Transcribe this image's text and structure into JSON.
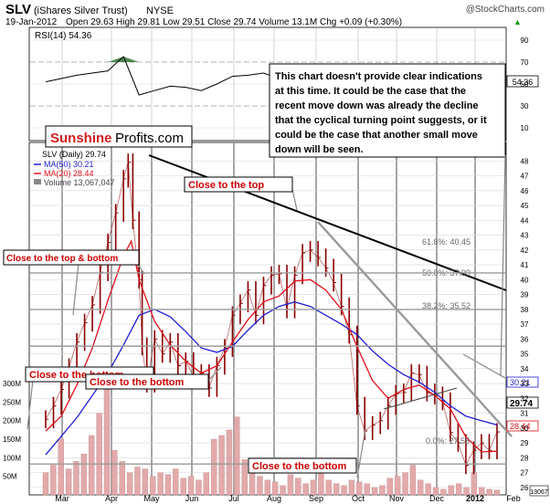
{
  "header": {
    "symbol": "SLV",
    "name": "(iShares Silver Trust)",
    "exchange": "NYSE",
    "copyright": "@StockCharts.com",
    "date": "19-Jan-2012",
    "quote": "Open 29.63  High 29.81  Low 29.51  Close 29.74  Volume 13.1M  Chg +0.09 (+0.30%)",
    "arrow": "▲"
  },
  "rsi": {
    "label": "RSI(14) 54.36",
    "last_tag": "54.36",
    "ticks": [
      "90",
      "70",
      "50",
      "30",
      "10"
    ]
  },
  "price_panel": {
    "legend_title": "SLV (Daily) 29.74",
    "legend_ma50": "MA(50) 30.21",
    "legend_ma20": "MA(20) 28.44",
    "legend_volume": "Volume 13,067,047",
    "tag_ma50": "30.21",
    "tag_close": "29.74",
    "tag_ma20": "28.44",
    "tag_volume": "13067",
    "vol_ticks": [
      "300M",
      "250M",
      "200M",
      "150M",
      "100M",
      "50M"
    ],
    "x_labels": [
      "Mar",
      "Apr",
      "May",
      "Jun",
      "Jul",
      "Aug",
      "Sep",
      "Oct",
      "Nov",
      "Dec",
      "2012",
      "Feb"
    ],
    "fib_labels": [
      "61.8%: 40.45",
      "50.0%: 37.99",
      "38.2%: 35.52",
      "0.0%: 27.58"
    ]
  },
  "brand": {
    "part1": "Sunshine",
    "part2": "Profits.com"
  },
  "annotations": {
    "commentary": [
      "This chart doesn't provide clear indications",
      "at this time. It could be the case that the",
      "recent move down was already the decline",
      "that the cyclical turning point suggests, or it",
      "could be the case that another small move",
      "down will be seen."
    ],
    "close_to_top": "Close to the top",
    "close_to_top_bottom": "Close to the top & bottom",
    "close_to_bottom_1": "Close to the bottom",
    "close_to_bottom_2": "Close to the bottom",
    "close_to_bottom_3": "Close to the bottom"
  },
  "colors": {
    "price_bars": "#8b0000",
    "ma50": "#1e1ed2",
    "ma20": "#e0101a",
    "volume": "#e2aaaa",
    "rsi_fill": "#3d7d3d",
    "annotation_red": "#cc0000",
    "trend_line": "#000000"
  },
  "chart_data": {
    "type": "line",
    "title": "SLV (iShares Silver Trust) NYSE",
    "y_price_ticks": [
      26,
      27,
      28,
      29,
      30,
      31,
      32,
      33,
      34,
      35,
      36,
      37,
      38,
      39,
      40,
      41,
      42,
      43,
      44,
      45,
      46,
      47,
      48
    ],
    "ylim_price": [
      25.5,
      49
    ],
    "ylim_rsi": [
      0,
      100
    ],
    "ylim_volume_millions": [
      0,
      300
    ],
    "x_months": [
      "Mar",
      "Apr",
      "May",
      "Jun",
      "Jul",
      "Aug",
      "Sep",
      "Oct",
      "Nov",
      "Dec",
      "2012",
      "Feb"
    ],
    "fibonacci_levels": [
      {
        "label": "61.8%",
        "value": 40.45
      },
      {
        "label": "50.0%",
        "value": 37.99
      },
      {
        "label": "38.2%",
        "value": 35.52
      },
      {
        "label": "0.0%",
        "value": 27.58
      }
    ],
    "series": [
      {
        "name": "SLV (Daily)",
        "last": 29.74,
        "points": [
          [
            0,
            30.6
          ],
          [
            0.5,
            31.5
          ],
          [
            1,
            32.6
          ],
          [
            1.5,
            34.1
          ],
          [
            2,
            35.8
          ],
          [
            2.5,
            37.1
          ],
          [
            3,
            38.3
          ],
          [
            3.5,
            40.5
          ],
          [
            4,
            42.5
          ],
          [
            4.5,
            44.5
          ],
          [
            5,
            46.8
          ],
          [
            5.3,
            47.9
          ],
          [
            5.6,
            44.0
          ],
          [
            6,
            40.0
          ],
          [
            6.2,
            35.5
          ],
          [
            6.5,
            33.0
          ],
          [
            7,
            36.0
          ],
          [
            7.5,
            35.0
          ],
          [
            8,
            35.8
          ],
          [
            8.5,
            34.2
          ],
          [
            9,
            34.5
          ],
          [
            9.5,
            33.5
          ],
          [
            10,
            33.7
          ],
          [
            10.5,
            32.7
          ],
          [
            11,
            34.2
          ],
          [
            11.5,
            35.4
          ],
          [
            12,
            37.6
          ],
          [
            12.5,
            38.4
          ],
          [
            13,
            39.3
          ],
          [
            13.5,
            37.6
          ],
          [
            14,
            39.6
          ],
          [
            14.5,
            40.3
          ],
          [
            15,
            40.4
          ],
          [
            15.5,
            38.0
          ],
          [
            16,
            40.3
          ],
          [
            16.5,
            41.8
          ],
          [
            17,
            42.0
          ],
          [
            17.5,
            41.5
          ],
          [
            18,
            40.8
          ],
          [
            18.5,
            39.8
          ],
          [
            19,
            38.2
          ],
          [
            19.5,
            36.3
          ],
          [
            20,
            31.5
          ],
          [
            20.5,
            29.8
          ],
          [
            21,
            30.2
          ],
          [
            21.5,
            30.5
          ],
          [
            22,
            31.5
          ],
          [
            22.5,
            32.3
          ],
          [
            23,
            32.4
          ],
          [
            23.5,
            33.7
          ],
          [
            24,
            33.6
          ],
          [
            24.5,
            32.4
          ],
          [
            25,
            32.2
          ],
          [
            25.5,
            31.8
          ],
          [
            26,
            29.7
          ],
          [
            26.5,
            29.0
          ],
          [
            27,
            27.5
          ],
          [
            27.5,
            28.5
          ],
          [
            28,
            29.0
          ],
          [
            28.5,
            28.5
          ],
          [
            29,
            29.74
          ]
        ]
      },
      {
        "name": "MA(50)",
        "last": 30.21,
        "points": [
          [
            0,
            28.2
          ],
          [
            2,
            30.7
          ],
          [
            4,
            33.7
          ],
          [
            5,
            35.6
          ],
          [
            6,
            37.6
          ],
          [
            7,
            38.0
          ],
          [
            8,
            37.5
          ],
          [
            9,
            36.5
          ],
          [
            10,
            35.4
          ],
          [
            11,
            35.1
          ],
          [
            12,
            35.5
          ],
          [
            13,
            36.6
          ],
          [
            14,
            37.6
          ],
          [
            15,
            38.2
          ],
          [
            16,
            38.5
          ],
          [
            17,
            38.2
          ],
          [
            18,
            37.6
          ],
          [
            19,
            37.0
          ],
          [
            20,
            36.3
          ],
          [
            21,
            35.2
          ],
          [
            22,
            34.3
          ],
          [
            23,
            33.6
          ],
          [
            24,
            33.1
          ],
          [
            25,
            32.4
          ],
          [
            26,
            31.5
          ],
          [
            27,
            30.8
          ],
          [
            28,
            30.5
          ],
          [
            29,
            30.21
          ]
        ]
      },
      {
        "name": "MA(20)",
        "last": 28.44,
        "points": [
          [
            0,
            29.8
          ],
          [
            1,
            30.8
          ],
          [
            2,
            32.9
          ],
          [
            3,
            35.4
          ],
          [
            4,
            38.6
          ],
          [
            5,
            41.6
          ],
          [
            5.5,
            42.6
          ],
          [
            6,
            40.0
          ],
          [
            7,
            37.2
          ],
          [
            8,
            35.6
          ],
          [
            9,
            34.5
          ],
          [
            10,
            33.7
          ],
          [
            11,
            34.2
          ],
          [
            12,
            35.8
          ],
          [
            13,
            37.3
          ],
          [
            14,
            38.5
          ],
          [
            15,
            38.9
          ],
          [
            16,
            39.9
          ],
          [
            17,
            40.0
          ],
          [
            18,
            39.3
          ],
          [
            19,
            38.0
          ],
          [
            20,
            35.5
          ],
          [
            21,
            33.2
          ],
          [
            22,
            32.0
          ],
          [
            23,
            32.6
          ],
          [
            24,
            32.9
          ],
          [
            25,
            32.2
          ],
          [
            26,
            31.3
          ],
          [
            27,
            29.4
          ],
          [
            28,
            28.4
          ],
          [
            29,
            28.44
          ]
        ]
      },
      {
        "name": "RSI(14)",
        "last": 54.36,
        "points": [
          [
            0,
            52
          ],
          [
            2,
            58
          ],
          [
            4,
            62
          ],
          [
            5,
            75
          ],
          [
            6,
            40
          ],
          [
            7,
            44
          ],
          [
            8,
            48
          ],
          [
            9,
            47
          ],
          [
            10,
            44
          ],
          [
            11,
            50
          ],
          [
            12,
            57
          ],
          [
            13,
            58
          ],
          [
            14,
            60
          ],
          [
            15,
            55
          ],
          [
            16,
            62
          ],
          [
            17,
            58
          ],
          [
            18,
            45
          ],
          [
            19,
            40
          ],
          [
            20,
            32
          ],
          [
            21,
            45
          ],
          [
            22,
            50
          ],
          [
            23,
            55
          ],
          [
            24,
            48
          ],
          [
            25,
            44
          ],
          [
            26,
            40
          ],
          [
            27,
            35
          ],
          [
            28,
            45
          ],
          [
            29,
            54.36
          ]
        ]
      }
    ],
    "volume_millions": [
      60,
      80,
      150,
      70,
      90,
      110,
      160,
      220,
      290,
      120,
      90,
      60,
      75,
      70,
      50,
      60,
      55,
      70,
      45,
      50,
      40,
      60,
      150,
      160,
      175,
      210,
      95,
      90,
      50,
      40,
      35,
      25,
      55,
      45,
      30,
      40,
      60,
      40,
      30,
      25,
      40,
      35,
      30,
      20,
      25,
      45,
      50,
      60,
      80,
      40,
      30,
      20,
      15,
      25,
      30,
      20,
      60,
      20,
      15,
      13
    ]
  }
}
